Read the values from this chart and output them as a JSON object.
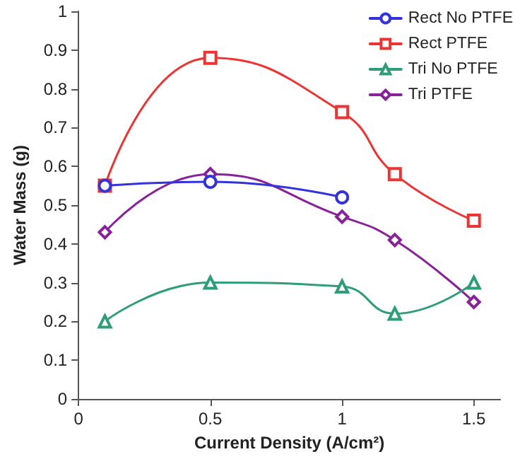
{
  "chart_data": {
    "type": "line",
    "xlabel": "Current Density (A/cm²)",
    "ylabel": "Water Mass (g)",
    "x": [
      0.1,
      0.5,
      1,
      1.2,
      1.5
    ],
    "series": [
      {
        "name": "Rect No PTFE",
        "color": "#3333dd",
        "marker": "circle",
        "x": [
          0.1,
          0.5,
          1
        ],
        "values": [
          0.55,
          0.56,
          0.52
        ]
      },
      {
        "name": "Rect PTFE",
        "color": "#ee3333",
        "marker": "square",
        "values": [
          0.55,
          0.88,
          0.74,
          0.58,
          0.46
        ]
      },
      {
        "name": "Tri No PTFE",
        "color": "#2e9e78",
        "marker": "triangle",
        "values": [
          0.2,
          0.3,
          0.29,
          0.22,
          0.3
        ]
      },
      {
        "name": "Tri PTFE",
        "color": "#882299",
        "marker": "diamond",
        "values": [
          0.43,
          0.58,
          0.47,
          0.41,
          0.25
        ]
      }
    ],
    "xlim": [
      0,
      1.6
    ],
    "xticks": [
      0,
      0.5,
      1,
      1.5
    ],
    "ylim": [
      0,
      1
    ],
    "yticks": [
      0,
      0.1,
      0.2,
      0.3,
      0.4,
      0.5,
      0.6,
      0.7,
      0.8,
      0.9,
      1
    ],
    "grid": false,
    "legend": "top right",
    "line_style": "solid"
  }
}
